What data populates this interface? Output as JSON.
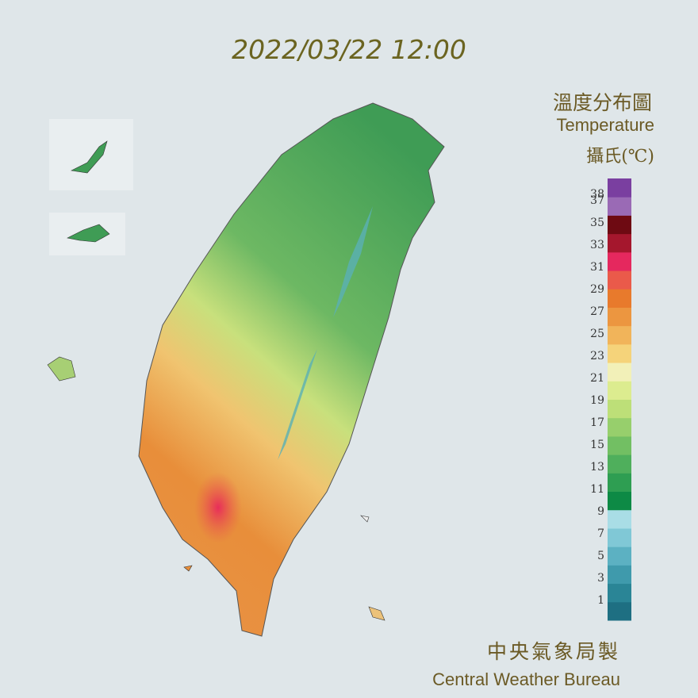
{
  "timestamp": "2022/03/22 12:00",
  "title": "溫度分布圖",
  "subtitle": "Temperature",
  "unit": "攝氏(℃)",
  "legend": {
    "labels": [
      38,
      37,
      35,
      33,
      31,
      29,
      27,
      25,
      23,
      21,
      19,
      17,
      15,
      13,
      11,
      9,
      7,
      5,
      3,
      1
    ],
    "colors": [
      "#1e6f82",
      "#2a8596",
      "#3f9aac",
      "#5cb1c2",
      "#80c8d6",
      "#a9dde6",
      "#0d8a45",
      "#2e9e52",
      "#4faf5c",
      "#72bf63",
      "#97cf6c",
      "#bddf78",
      "#dcec8f",
      "#f2f0b8",
      "#f5d37a",
      "#f1b45a",
      "#ec9640",
      "#e87a2c",
      "#ea5a4a",
      "#e5285e",
      "#a5172d",
      "#6e0a12",
      "#9a6ab5",
      "#7a3fa0"
    ]
  },
  "credit_zh": "中央氣象局製",
  "credit_en": "Central Weather Bureau"
}
